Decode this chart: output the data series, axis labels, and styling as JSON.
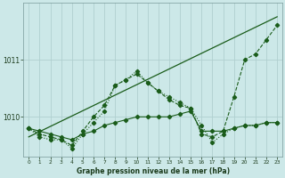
{
  "title": "Graphe pression niveau de la mer (hPa)",
  "bg_color": "#cce8e8",
  "grid_color": "#b0d0d0",
  "line_color": "#1a5c1a",
  "xlim": [
    -0.5,
    23.5
  ],
  "ylim": [
    1009.3,
    1012.0
  ],
  "yticks": [
    1010,
    1011
  ],
  "xticks": [
    0,
    1,
    2,
    3,
    4,
    5,
    6,
    7,
    8,
    9,
    10,
    11,
    12,
    13,
    14,
    15,
    16,
    17,
    18,
    19,
    20,
    21,
    22,
    23
  ],
  "series1_x": [
    0,
    1,
    2,
    3,
    4,
    5,
    6,
    7,
    8,
    9,
    10,
    11,
    12,
    13,
    14,
    15,
    16,
    17,
    18,
    19,
    20,
    21,
    22,
    23
  ],
  "series1_y": [
    1009.8,
    1009.75,
    1009.7,
    1009.65,
    1009.6,
    1009.7,
    1009.75,
    1009.85,
    1009.9,
    1009.95,
    1010.0,
    1010.0,
    1010.0,
    1010.0,
    1010.05,
    1010.1,
    1009.75,
    1009.75,
    1009.75,
    1009.8,
    1009.85,
    1009.85,
    1009.9,
    1009.9
  ],
  "series2_x": [
    0,
    1,
    2,
    3,
    4,
    5,
    6,
    7,
    8,
    9,
    10,
    11,
    12,
    13,
    14,
    15,
    16,
    17,
    18,
    19,
    20,
    21,
    22,
    23
  ],
  "series2_y": [
    1009.8,
    1009.7,
    1009.65,
    1009.6,
    1009.5,
    1009.75,
    1010.0,
    1010.2,
    1010.55,
    1010.65,
    1010.75,
    1010.6,
    1010.45,
    1010.3,
    1010.2,
    1010.15,
    1009.7,
    1009.65,
    1009.75,
    1010.35,
    1011.0,
    1011.1,
    1011.35,
    1011.6
  ],
  "series3_x": [
    0,
    1,
    2,
    3,
    4,
    5,
    6,
    7,
    8,
    9,
    10,
    11,
    12,
    13,
    14,
    15,
    16,
    17,
    18,
    19,
    20,
    21,
    22,
    23
  ],
  "series3_y": [
    1009.8,
    1009.65,
    1009.6,
    1009.6,
    1009.45,
    1009.7,
    1009.9,
    1010.1,
    1010.55,
    1010.65,
    1010.8,
    1010.6,
    1010.45,
    1010.35,
    1010.25,
    1010.15,
    1009.85,
    1009.55,
    1009.7,
    1009.8,
    1009.85,
    1009.85,
    1009.9,
    1009.9
  ],
  "trend_x": [
    0,
    23
  ],
  "trend_y": [
    1009.65,
    1011.75
  ]
}
